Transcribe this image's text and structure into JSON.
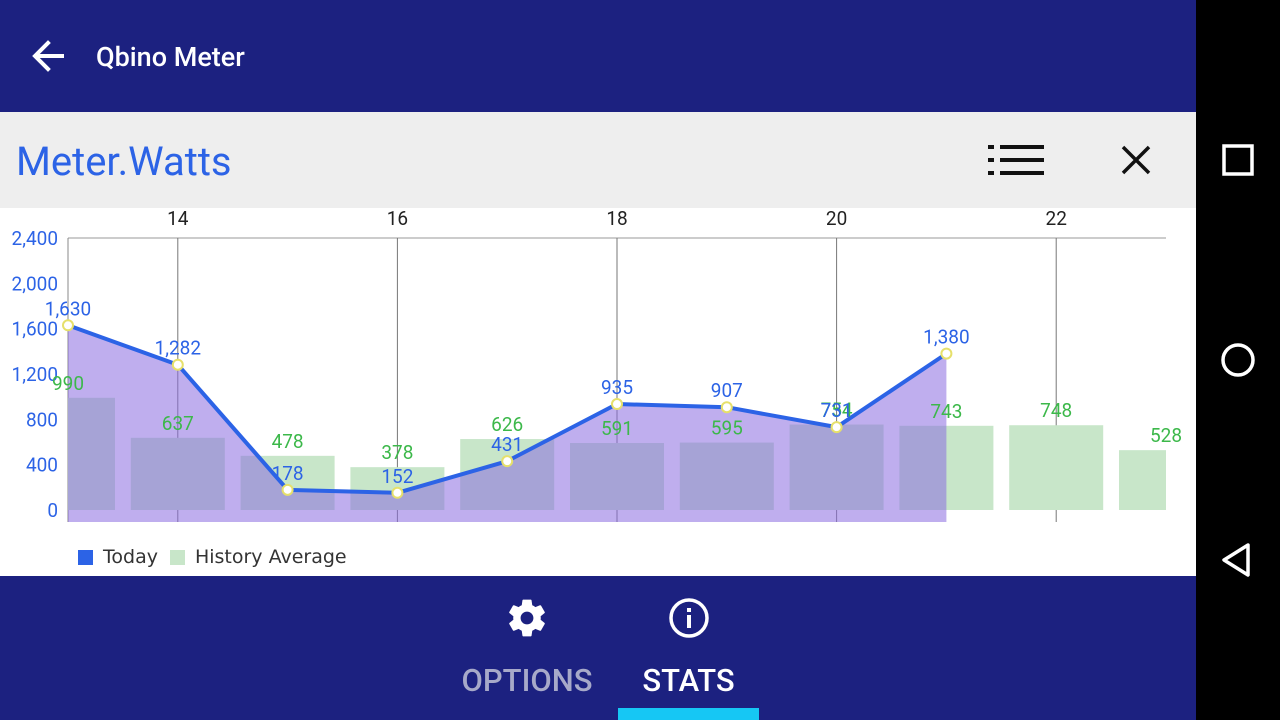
{
  "app": {
    "title": "Qbino Meter"
  },
  "header": {
    "title": "Meter.Watts"
  },
  "colors": {
    "appbar": "#1c2180",
    "title_blue": "#2c63e6",
    "today": "#2c63e6",
    "today_fill": "#b3a5ef",
    "history": "#c8e6c9",
    "history_label": "#3cb84a",
    "tab_indicator": "#16c7f4"
  },
  "tabs": [
    {
      "label": "OPTIONS",
      "icon": "gear-icon",
      "active": false
    },
    {
      "label": "STATS",
      "icon": "info-icon",
      "active": true
    }
  ],
  "chart_data": {
    "type": "bar+line",
    "title": "Meter.Watts",
    "x_ticks": [
      14,
      16,
      18,
      20,
      22
    ],
    "x_range": [
      13,
      23
    ],
    "y_ticks": [
      0,
      400,
      800,
      1200,
      1600,
      2000,
      2400
    ],
    "y_tick_labels": [
      "0",
      "400",
      "800",
      "1,200",
      "1,600",
      "2,000",
      "2,400"
    ],
    "ylim": [
      0,
      2400
    ],
    "series": [
      {
        "name": "Today",
        "type": "line",
        "x": [
          13,
          14,
          15,
          16,
          17,
          18,
          19,
          20,
          21
        ],
        "values": [
          1630,
          1282,
          178,
          152,
          431,
          935,
          907,
          731,
          1380
        ],
        "labels": [
          "1,630",
          "1,282",
          "178",
          "152",
          "431",
          "935",
          "907",
          "731",
          "1,380"
        ]
      },
      {
        "name": "History Average",
        "type": "bar",
        "x": [
          13,
          14,
          15,
          16,
          17,
          18,
          19,
          20,
          21,
          22,
          23
        ],
        "values": [
          990,
          637,
          478,
          378,
          626,
          591,
          595,
          754,
          743,
          748,
          528
        ],
        "labels": [
          "990",
          "637",
          "478",
          "378",
          "626",
          "591",
          "595",
          "754",
          "743",
          "748",
          "528"
        ]
      }
    ],
    "legend": [
      "Today",
      "History Average"
    ],
    "legend_position": "bottom-left",
    "grid": "vertical"
  }
}
